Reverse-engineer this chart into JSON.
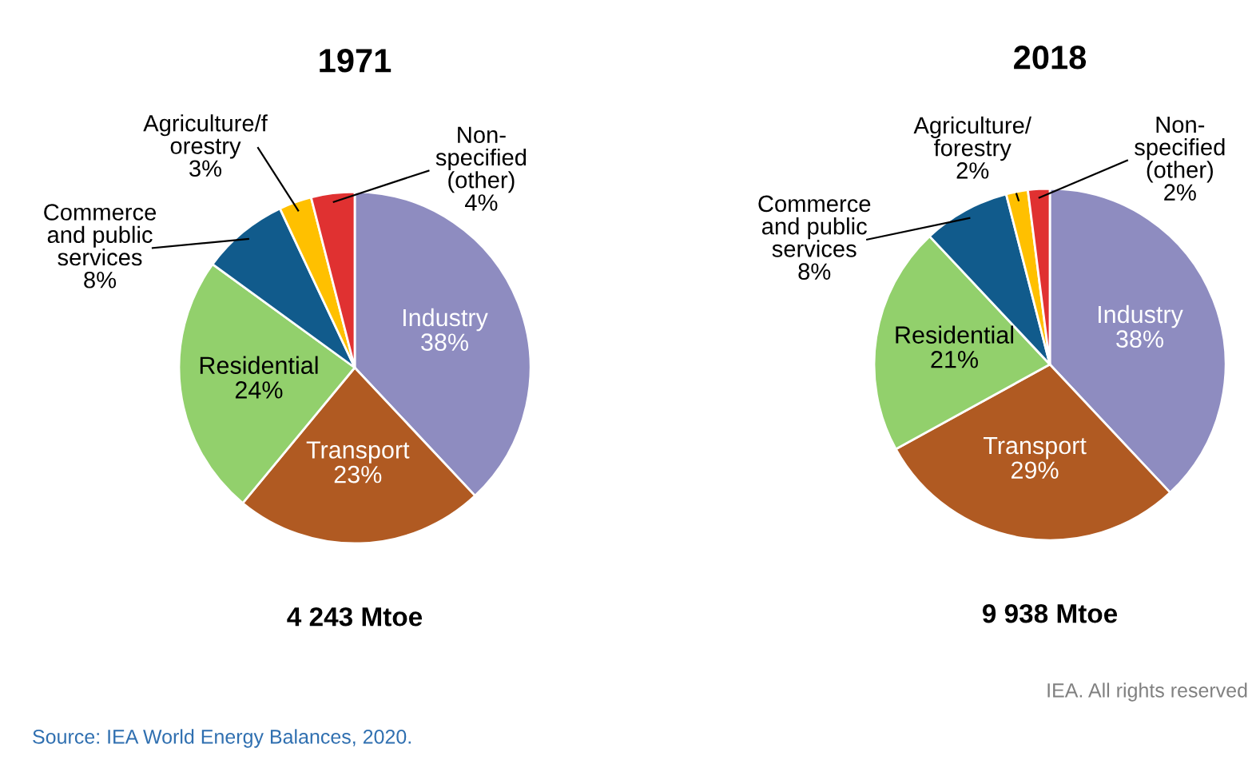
{
  "chart_data": [
    {
      "type": "pie",
      "title": "1971",
      "categories": [
        "Industry",
        "Transport",
        "Residential",
        "Commerce\nand public\nservices",
        "Agriculture/f\norestry",
        "Non-\nspecified\n(other)"
      ],
      "values": [
        38,
        23,
        24,
        8,
        3,
        4
      ],
      "value_labels": [
        "38%",
        "23%",
        "24%",
        "8%",
        "3%",
        "4%"
      ],
      "colors": [
        "#8e8cc0",
        "#b05a22",
        "#92d06c",
        "#115b8c",
        "#ffc000",
        "#e03131"
      ],
      "annotations": [
        "4 243 Mtoe",
        "Source: IEA World Energy Balances, 2020."
      ]
    },
    {
      "type": "pie",
      "title": "2018",
      "categories": [
        "Industry",
        "Transport",
        "Residential",
        "Commerce\nand public\nservices",
        "Agriculture/\nforestry",
        "Non-\nspecified\n(other)"
      ],
      "values": [
        38,
        29,
        21,
        8,
        2,
        2
      ],
      "value_labels": [
        "38%",
        "29%",
        "21%",
        "8%",
        "2%",
        "2%"
      ],
      "colors": [
        "#8e8cc0",
        "#b05a22",
        "#92d06c",
        "#115b8c",
        "#ffc000",
        "#e03131"
      ],
      "annotations": [
        "9 938 Mtoe",
        "IEA. All rights reserved"
      ]
    }
  ]
}
